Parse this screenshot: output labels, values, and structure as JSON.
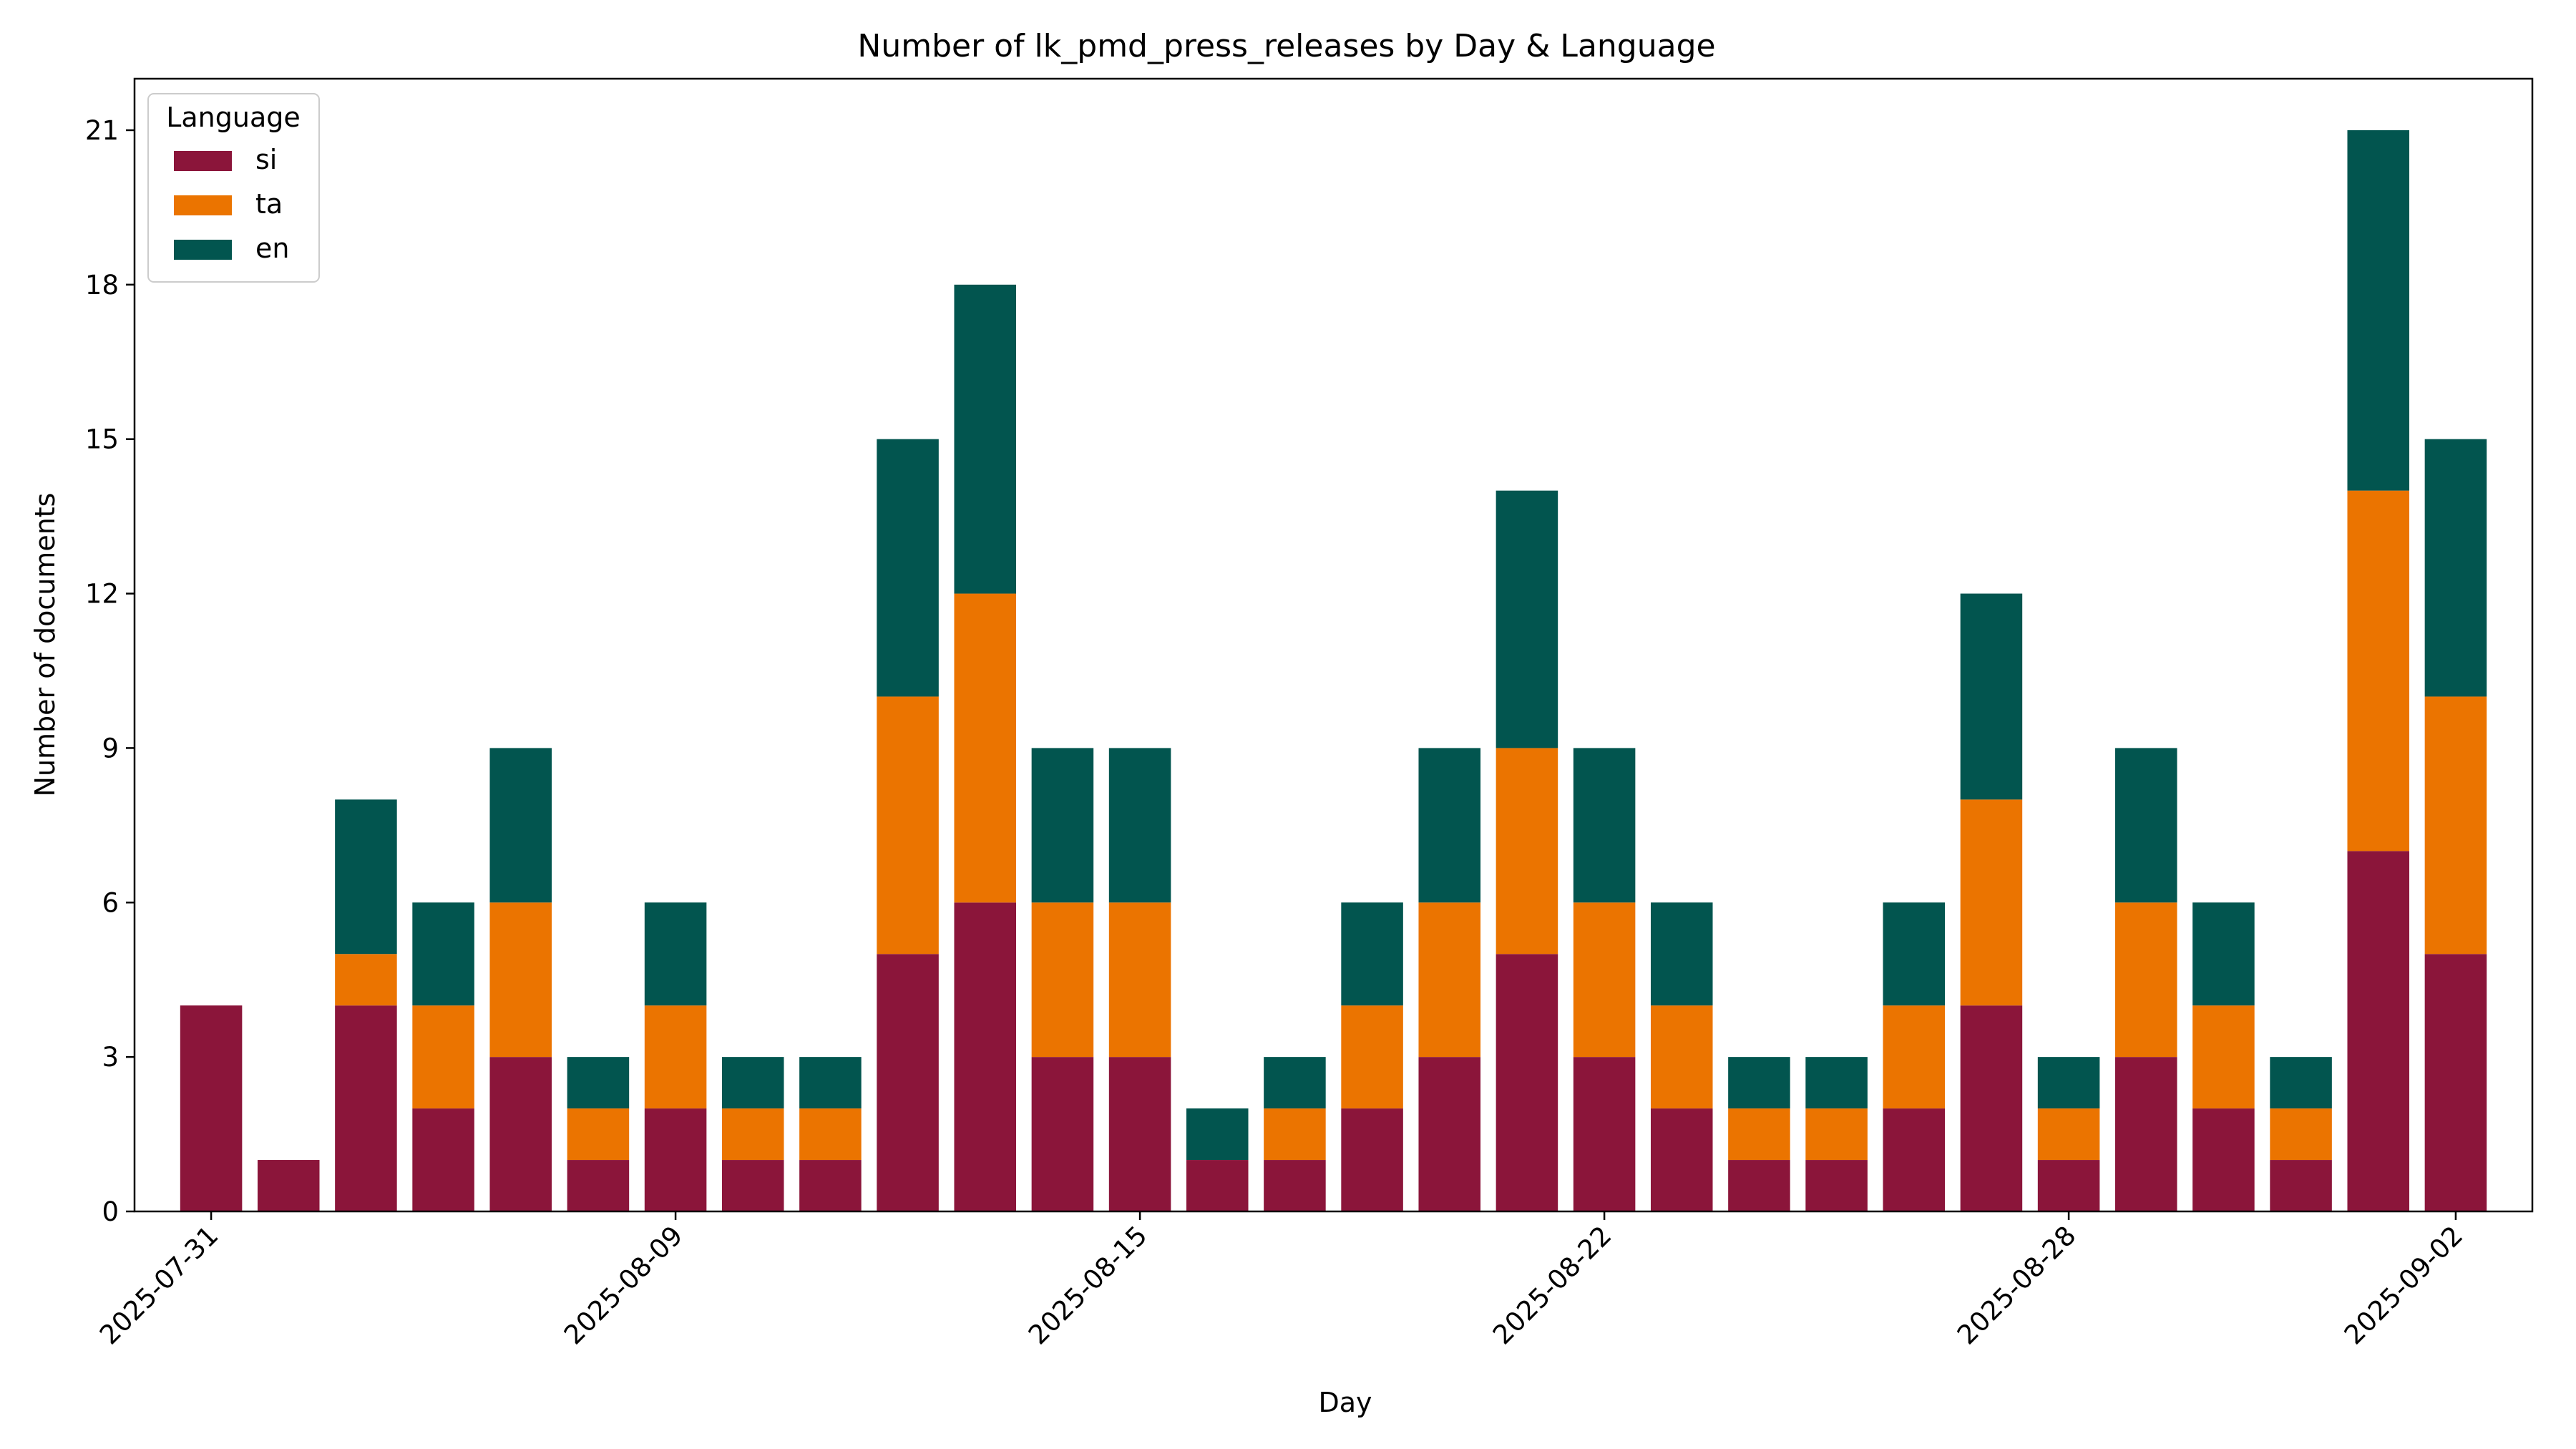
{
  "chart_data": {
    "type": "bar",
    "stacked": true,
    "title": "Number of lk_pmd_press_releases by Day & Language",
    "xlabel": "Day",
    "ylabel": "Number of documents",
    "ylim": [
      0,
      22
    ],
    "yticks": [
      0,
      3,
      6,
      9,
      12,
      15,
      18,
      21
    ],
    "xtick_labels": [
      "2025-07-31",
      "2025-08-09",
      "2025-08-15",
      "2025-08-22",
      "2025-08-28",
      "2025-09-02"
    ],
    "xtick_bar_positions": [
      0,
      6,
      12,
      18,
      24,
      29
    ],
    "legend": {
      "title": "Language",
      "position": "top-left"
    },
    "series": [
      {
        "name": "si",
        "color": "#8b153a",
        "values": [
          4,
          1,
          4,
          2,
          3,
          1,
          2,
          1,
          1,
          5,
          6,
          3,
          3,
          1,
          1,
          2,
          3,
          5,
          3,
          2,
          1,
          1,
          2,
          4,
          1,
          3,
          2,
          1,
          7,
          5
        ]
      },
      {
        "name": "ta",
        "color": "#eb7400",
        "values": [
          0,
          0,
          1,
          2,
          3,
          1,
          2,
          1,
          1,
          5,
          6,
          3,
          3,
          0,
          1,
          2,
          3,
          4,
          3,
          2,
          1,
          1,
          2,
          4,
          1,
          3,
          2,
          1,
          7,
          5
        ]
      },
      {
        "name": "en",
        "color": "#02554f",
        "values": [
          0,
          0,
          3,
          2,
          3,
          1,
          2,
          1,
          1,
          5,
          6,
          3,
          3,
          1,
          1,
          2,
          3,
          5,
          3,
          2,
          1,
          1,
          2,
          4,
          1,
          3,
          2,
          1,
          7,
          5
        ]
      }
    ]
  }
}
